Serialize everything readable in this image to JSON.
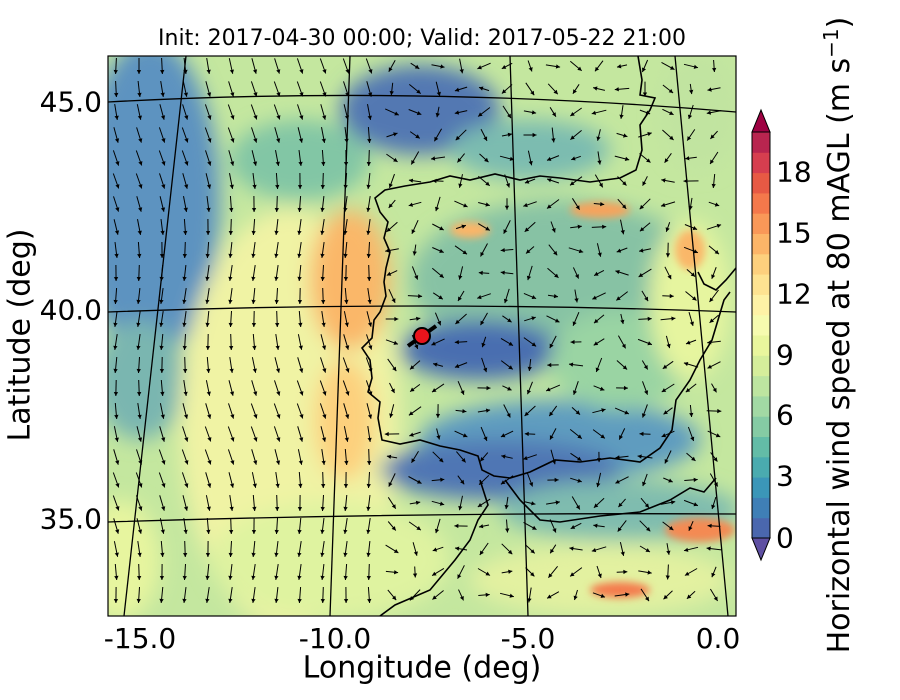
{
  "title": "Init: 2017-04-30 00:00; Valid: 2017-05-22 21:00",
  "axes": {
    "xlabel": "Longitude (deg)",
    "ylabel": "Latitude (deg)",
    "xticks": [
      "-15.0",
      "-10.0",
      "-5.0",
      "0.0"
    ],
    "yticks": [
      "45.0",
      "40.0",
      "35.0"
    ]
  },
  "colorbar": {
    "label_text": "Horizontal wind speed at 80 mAGL (m s",
    "label_sup": "−1",
    "label_end": ")",
    "ticks": [
      "0",
      "3",
      "6",
      "9",
      "12",
      "15",
      "18"
    ],
    "range": [
      0,
      20
    ],
    "extend": "both",
    "colors": [
      "#5e4fa2",
      "#4a67ae",
      "#3f7fb6",
      "#3b96b8",
      "#4aabaf",
      "#63bca7",
      "#85cba4",
      "#a2d9a4",
      "#bde5a0",
      "#d5ee9b",
      "#e9f69d",
      "#f6fbaf",
      "#fef2a6",
      "#fee391",
      "#fdd07d",
      "#fcb568",
      "#f99858",
      "#f4784b",
      "#e75944",
      "#d63e4f",
      "#b8254f",
      "#9e0142"
    ]
  },
  "map": {
    "location_marker": {
      "lon": -7.6,
      "lat": 39.3,
      "color": "#e8141c"
    },
    "features": [
      "coastlines",
      "graticule",
      "wind-vectors",
      "wind-speed-contours"
    ]
  }
}
